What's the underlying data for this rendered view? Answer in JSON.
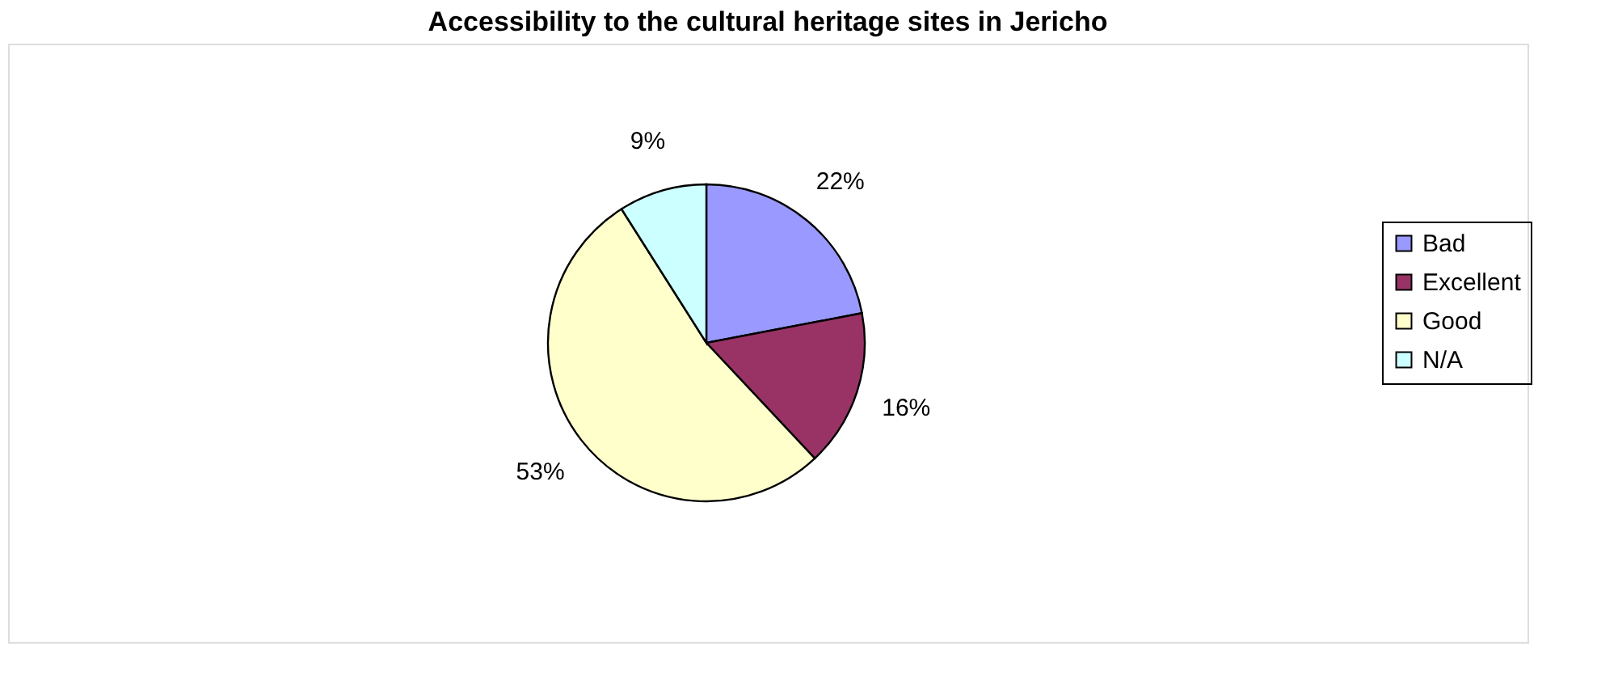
{
  "chart_data": {
    "type": "pie",
    "title": "Accessibility to the cultural heritage sites in Jericho",
    "categories": [
      "Bad",
      "Excellent",
      "Good",
      "N/A"
    ],
    "values": [
      22,
      16,
      53,
      9
    ],
    "colors": [
      "#9999ff",
      "#993366",
      "#ffffcc",
      "#ccffff"
    ],
    "value_labels": [
      "22%",
      "16%",
      "53%",
      "9%"
    ],
    "legend": "right"
  }
}
